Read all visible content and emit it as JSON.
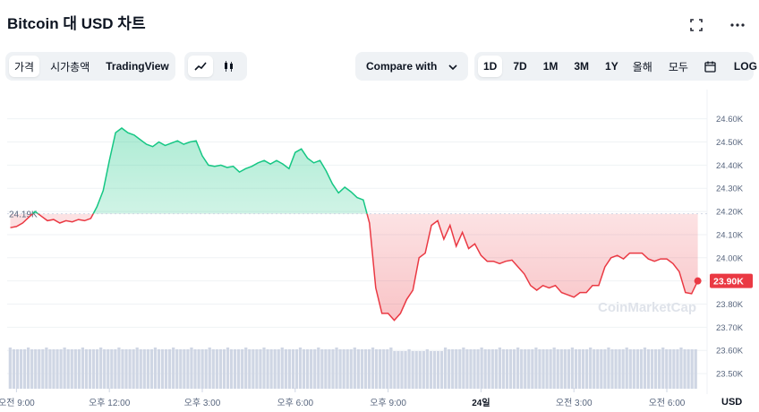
{
  "header": {
    "title": "Bitcoin 대 USD 차트"
  },
  "toolbar": {
    "view_tabs": [
      {
        "label": "가격",
        "active": true
      },
      {
        "label": "시가총액",
        "active": false
      },
      {
        "label": "TradingView",
        "active": false
      }
    ],
    "chart_type_icons": [
      "line-chart-icon",
      "candlestick-icon"
    ],
    "compare_label": "Compare with",
    "ranges": [
      {
        "label": "1D",
        "active": true
      },
      {
        "label": "7D",
        "active": false
      },
      {
        "label": "1M",
        "active": false
      },
      {
        "label": "3M",
        "active": false
      },
      {
        "label": "1Y",
        "active": false
      },
      {
        "label": "올해",
        "active": false
      },
      {
        "label": "모두",
        "active": false
      }
    ],
    "log_label": "LOG"
  },
  "colors": {
    "up": "#16c784",
    "down": "#ea3943",
    "volume": "#cfd6e4",
    "grid": "#eff2f5"
  },
  "watermark": "CoinMarketCap",
  "chart_data": {
    "type": "area",
    "title": "Bitcoin 대 USD 차트",
    "currency_label": "USD",
    "baseline": 24190,
    "baseline_label": "24.19K",
    "current_label": "23.90K",
    "ylim": [
      23450,
      24680
    ],
    "y_ticks": [
      "24.60K",
      "24.50K",
      "24.40K",
      "24.30K",
      "24.20K",
      "24.10K",
      "24.00K",
      "23.90K",
      "23.80K",
      "23.70K",
      "23.60K",
      "23.50K"
    ],
    "y_tick_values": [
      24600,
      24500,
      24400,
      24300,
      24200,
      24100,
      24000,
      23900,
      23800,
      23700,
      23600,
      23500
    ],
    "x_ticks": [
      "오전 9:00",
      "오후 12:00",
      "오후 3:00",
      "오후 6:00",
      "오후 9:00",
      "24일",
      "오전 3:00",
      "오전 6:00"
    ],
    "x_tick_hours": [
      9,
      12,
      15,
      18,
      21,
      24,
      27,
      30
    ],
    "x_range_hours": [
      8.7,
      31.3
    ],
    "series": [
      {
        "values": [
          [
            8.8,
            24130
          ],
          [
            9.0,
            24135
          ],
          [
            9.2,
            24150
          ],
          [
            9.4,
            24175
          ],
          [
            9.6,
            24200
          ],
          [
            9.8,
            24180
          ],
          [
            10.0,
            24160
          ],
          [
            10.2,
            24165
          ],
          [
            10.4,
            24150
          ],
          [
            10.6,
            24160
          ],
          [
            10.8,
            24155
          ],
          [
            11.0,
            24165
          ],
          [
            11.2,
            24160
          ],
          [
            11.4,
            24170
          ],
          [
            11.6,
            24220
          ],
          [
            11.8,
            24290
          ],
          [
            12.0,
            24420
          ],
          [
            12.2,
            24540
          ],
          [
            12.4,
            24560
          ],
          [
            12.6,
            24540
          ],
          [
            12.8,
            24530
          ],
          [
            13.0,
            24510
          ],
          [
            13.2,
            24490
          ],
          [
            13.4,
            24480
          ],
          [
            13.6,
            24500
          ],
          [
            13.8,
            24485
          ],
          [
            14.0,
            24495
          ],
          [
            14.2,
            24505
          ],
          [
            14.4,
            24490
          ],
          [
            14.6,
            24500
          ],
          [
            14.8,
            24505
          ],
          [
            15.0,
            24440
          ],
          [
            15.2,
            24400
          ],
          [
            15.4,
            24395
          ],
          [
            15.6,
            24400
          ],
          [
            15.8,
            24390
          ],
          [
            16.0,
            24395
          ],
          [
            16.2,
            24370
          ],
          [
            16.4,
            24385
          ],
          [
            16.6,
            24395
          ],
          [
            16.8,
            24410
          ],
          [
            17.0,
            24420
          ],
          [
            17.2,
            24405
          ],
          [
            17.4,
            24420
          ],
          [
            17.6,
            24405
          ],
          [
            17.8,
            24385
          ],
          [
            18.0,
            24455
          ],
          [
            18.2,
            24470
          ],
          [
            18.4,
            24430
          ],
          [
            18.6,
            24410
          ],
          [
            18.8,
            24420
          ],
          [
            19.0,
            24375
          ],
          [
            19.2,
            24320
          ],
          [
            19.4,
            24280
          ],
          [
            19.6,
            24305
          ],
          [
            19.8,
            24285
          ],
          [
            20.0,
            24260
          ],
          [
            20.2,
            24250
          ],
          [
            20.4,
            24150
          ],
          [
            20.6,
            23870
          ],
          [
            20.8,
            23760
          ],
          [
            21.0,
            23760
          ],
          [
            21.2,
            23730
          ],
          [
            21.4,
            23760
          ],
          [
            21.6,
            23820
          ],
          [
            21.8,
            23860
          ],
          [
            22.0,
            24000
          ],
          [
            22.2,
            24020
          ],
          [
            22.4,
            24140
          ],
          [
            22.6,
            24160
          ],
          [
            22.8,
            24080
          ],
          [
            23.0,
            24140
          ],
          [
            23.2,
            24050
          ],
          [
            23.4,
            24110
          ],
          [
            23.6,
            24040
          ],
          [
            23.8,
            24060
          ],
          [
            24.0,
            24010
          ],
          [
            24.2,
            23985
          ],
          [
            24.4,
            23985
          ],
          [
            24.6,
            23975
          ],
          [
            24.8,
            23985
          ],
          [
            25.0,
            23990
          ],
          [
            25.2,
            23960
          ],
          [
            25.4,
            23930
          ],
          [
            25.6,
            23880
          ],
          [
            25.8,
            23860
          ],
          [
            26.0,
            23880
          ],
          [
            26.2,
            23870
          ],
          [
            26.4,
            23880
          ],
          [
            26.6,
            23850
          ],
          [
            26.8,
            23840
          ],
          [
            27.0,
            23830
          ],
          [
            27.2,
            23850
          ],
          [
            27.4,
            23850
          ],
          [
            27.6,
            23880
          ],
          [
            27.8,
            23880
          ],
          [
            28.0,
            23960
          ],
          [
            28.2,
            24000
          ],
          [
            28.4,
            24010
          ],
          [
            28.6,
            23995
          ],
          [
            28.8,
            24020
          ],
          [
            29.0,
            24020
          ],
          [
            29.2,
            24020
          ],
          [
            29.4,
            23995
          ],
          [
            29.6,
            23985
          ],
          [
            29.8,
            23995
          ],
          [
            30.0,
            23995
          ],
          [
            30.2,
            23975
          ],
          [
            30.4,
            23940
          ],
          [
            30.6,
            23850
          ],
          [
            30.8,
            23845
          ],
          [
            31.0,
            23900
          ]
        ]
      }
    ]
  }
}
